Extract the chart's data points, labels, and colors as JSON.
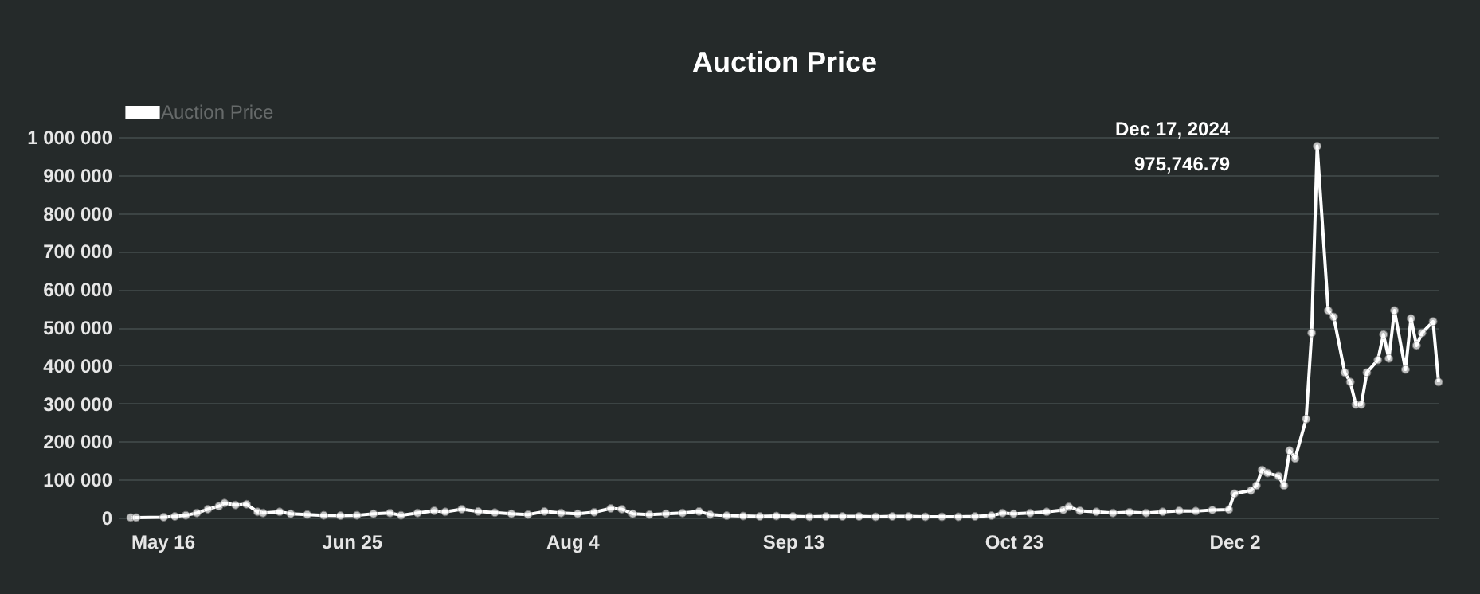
{
  "chart_data": {
    "type": "line",
    "title": "Auction Price",
    "legend": "top",
    "grid": "y",
    "marker": "circle",
    "line_style": "solid",
    "xlim": [
      "2024-05-16",
      "2025-01-08"
    ],
    "xticks": [
      {
        "value": "2024-05-16",
        "label": "May 16"
      },
      {
        "value": "2024-06-25",
        "label": "Jun 25"
      },
      {
        "value": "2024-08-04",
        "label": "Aug 4"
      },
      {
        "value": "2024-09-13",
        "label": "Sep 13"
      },
      {
        "value": "2024-10-23",
        "label": "Oct 23"
      },
      {
        "value": "2024-12-02",
        "label": "Dec 2"
      }
    ],
    "ylim": [
      0,
      1000000
    ],
    "yticks": [
      0,
      {
        "value": 100000,
        "label": "100 000"
      },
      {
        "value": 200000,
        "label": "200 000"
      },
      {
        "value": 300000,
        "label": "300 000"
      },
      {
        "value": 400000,
        "label": "400 000"
      },
      {
        "value": 500000,
        "label": "500 000"
      },
      {
        "value": 600000,
        "label": "600 000"
      },
      {
        "value": 700000,
        "label": "700 000"
      },
      {
        "value": 800000,
        "label": "800 000"
      },
      {
        "value": 900000,
        "label": "900 000"
      },
      {
        "value": 1000000,
        "label": "1 000 000"
      }
    ],
    "x": [
      "2024-05-16",
      "2024-05-17",
      "2024-05-22",
      "2024-05-24",
      "2024-05-26",
      "2024-05-28",
      "2024-05-30",
      "2024-06-01",
      "2024-06-02",
      "2024-06-04",
      "2024-06-06",
      "2024-06-08",
      "2024-06-09",
      "2024-06-12",
      "2024-06-14",
      "2024-06-17",
      "2024-06-20",
      "2024-06-23",
      "2024-06-26",
      "2024-06-29",
      "2024-07-02",
      "2024-07-04",
      "2024-07-07",
      "2024-07-10",
      "2024-07-12",
      "2024-07-15",
      "2024-07-18",
      "2024-07-21",
      "2024-07-24",
      "2024-07-27",
      "2024-07-30",
      "2024-08-02",
      "2024-08-05",
      "2024-08-08",
      "2024-08-11",
      "2024-08-13",
      "2024-08-15",
      "2024-08-18",
      "2024-08-21",
      "2024-08-24",
      "2024-08-27",
      "2024-08-29",
      "2024-09-01",
      "2024-09-04",
      "2024-09-07",
      "2024-09-10",
      "2024-09-13",
      "2024-09-16",
      "2024-09-19",
      "2024-09-22",
      "2024-09-25",
      "2024-09-28",
      "2024-10-01",
      "2024-10-04",
      "2024-10-07",
      "2024-10-10",
      "2024-10-13",
      "2024-10-16",
      "2024-10-19",
      "2024-10-21",
      "2024-10-23",
      "2024-10-26",
      "2024-10-29",
      "2024-11-01",
      "2024-11-02",
      "2024-11-04",
      "2024-11-07",
      "2024-11-10",
      "2024-11-13",
      "2024-11-16",
      "2024-11-19",
      "2024-11-22",
      "2024-11-25",
      "2024-11-28",
      "2024-12-01",
      "2024-12-02",
      "2024-12-05",
      "2024-12-06",
      "2024-12-07",
      "2024-12-08",
      "2024-12-10",
      "2024-12-11",
      "2024-12-12",
      "2024-12-13",
      "2024-12-15",
      "2024-12-16",
      "2024-12-17",
      "2024-12-19",
      "2024-12-20",
      "2024-12-22",
      "2024-12-23",
      "2024-12-24",
      "2024-12-25",
      "2024-12-26",
      "2024-12-28",
      "2024-12-29",
      "2024-12-30",
      "2024-12-31",
      "2025-01-02",
      "2025-01-03",
      "2025-01-04",
      "2025-01-05",
      "2025-01-07",
      "2025-01-08"
    ],
    "series": [
      {
        "name": "Auction Price",
        "color": "#ffffff",
        "values": [
          0,
          0,
          1000,
          3000,
          6000,
          12000,
          22000,
          30000,
          38000,
          33000,
          35000,
          15000,
          12000,
          15000,
          10000,
          8000,
          6000,
          5000,
          6000,
          10000,
          12000,
          6000,
          12000,
          18000,
          15000,
          22000,
          16000,
          13000,
          10000,
          8000,
          16000,
          12000,
          10000,
          14000,
          24000,
          22000,
          10000,
          8000,
          10000,
          12000,
          16000,
          8000,
          5000,
          4000,
          3000,
          4000,
          3000,
          2000,
          3000,
          3000,
          3000,
          2000,
          3000,
          3000,
          2000,
          2000,
          2000,
          3000,
          5000,
          12000,
          10000,
          12000,
          15000,
          20000,
          28000,
          18000,
          15000,
          12000,
          14000,
          12000,
          15000,
          18000,
          17000,
          20000,
          21000,
          63000,
          71000,
          84000,
          125000,
          117000,
          109000,
          84000,
          176000,
          155000,
          259000,
          485000,
          975746.79,
          544000,
          527000,
          381000,
          356000,
          297000,
          297000,
          381000,
          414000,
          481000,
          418000,
          544000,
          389000,
          523000,
          452000,
          485000,
          515000,
          356000
        ]
      }
    ],
    "annotations": [
      "Dec 17, 2024",
      "975,746.79"
    ]
  }
}
